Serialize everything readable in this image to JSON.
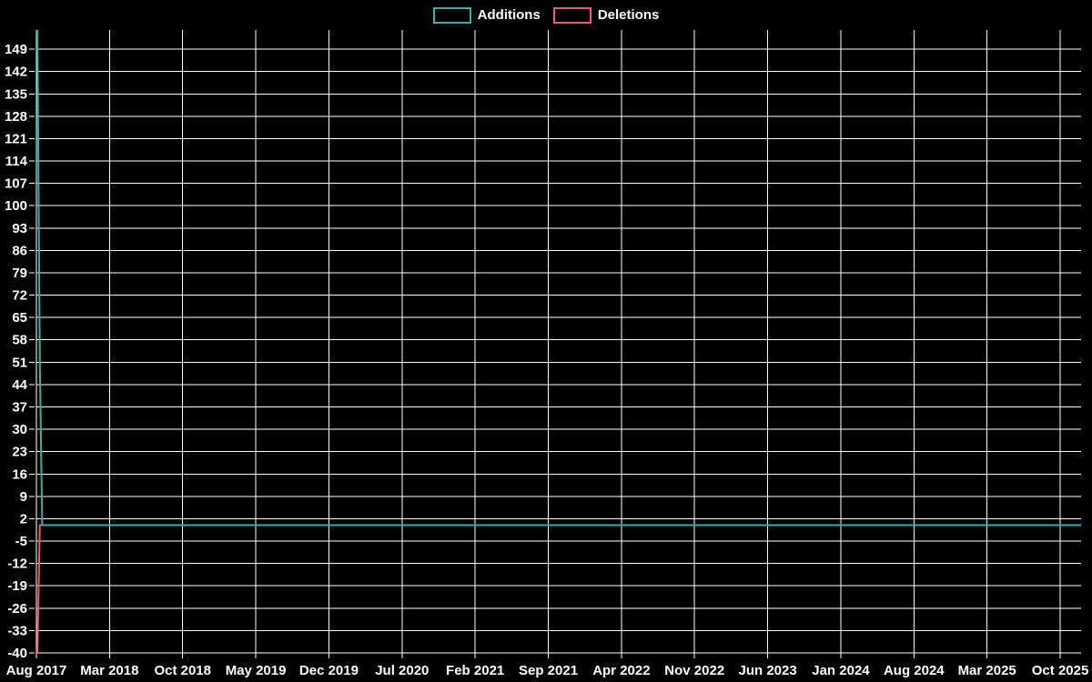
{
  "chart_data": {
    "type": "line",
    "title": "",
    "legend_position": "top center",
    "background_color": "#000000",
    "grid_color": "#ffffff",
    "text_color": "#ffffff",
    "grid": "on",
    "x_unit": "months since Aug 2017",
    "xlim": [
      0,
      100
    ],
    "ylim": [
      -40,
      155
    ],
    "y_ticks": [
      149,
      142,
      135,
      128,
      121,
      114,
      107,
      100,
      93,
      86,
      79,
      72,
      65,
      58,
      51,
      44,
      37,
      30,
      23,
      16,
      9,
      2,
      -5,
      -12,
      -19,
      -26,
      -33,
      -40
    ],
    "x_ticks": [
      {
        "m": 0,
        "label": "Aug 2017"
      },
      {
        "m": 7,
        "label": "Mar 2018"
      },
      {
        "m": 14,
        "label": "Oct 2018"
      },
      {
        "m": 21,
        "label": "May 2019"
      },
      {
        "m": 28,
        "label": "Dec 2019"
      },
      {
        "m": 35,
        "label": "Jul 2020"
      },
      {
        "m": 42,
        "label": "Feb 2021"
      },
      {
        "m": 49,
        "label": "Sep 2021"
      },
      {
        "m": 56,
        "label": "Apr 2022"
      },
      {
        "m": 63,
        "label": "Nov 2022"
      },
      {
        "m": 70,
        "label": "Jun 2023"
      },
      {
        "m": 77,
        "label": "Jan 2024"
      },
      {
        "m": 84,
        "label": "Aug 2024"
      },
      {
        "m": 91,
        "label": "Mar 2025"
      },
      {
        "m": 98,
        "label": "Oct 2025"
      }
    ],
    "series": [
      {
        "name": "Additions",
        "color": "#3bada6",
        "points": [
          [
            0.1,
            155
          ],
          [
            0.33,
            50
          ],
          [
            0.56,
            0
          ],
          [
            100,
            0
          ]
        ]
      },
      {
        "name": "Deletions",
        "color": "#ef5a73",
        "points": [
          [
            0.1,
            -40
          ],
          [
            0.33,
            0
          ],
          [
            100,
            0
          ]
        ]
      }
    ]
  }
}
